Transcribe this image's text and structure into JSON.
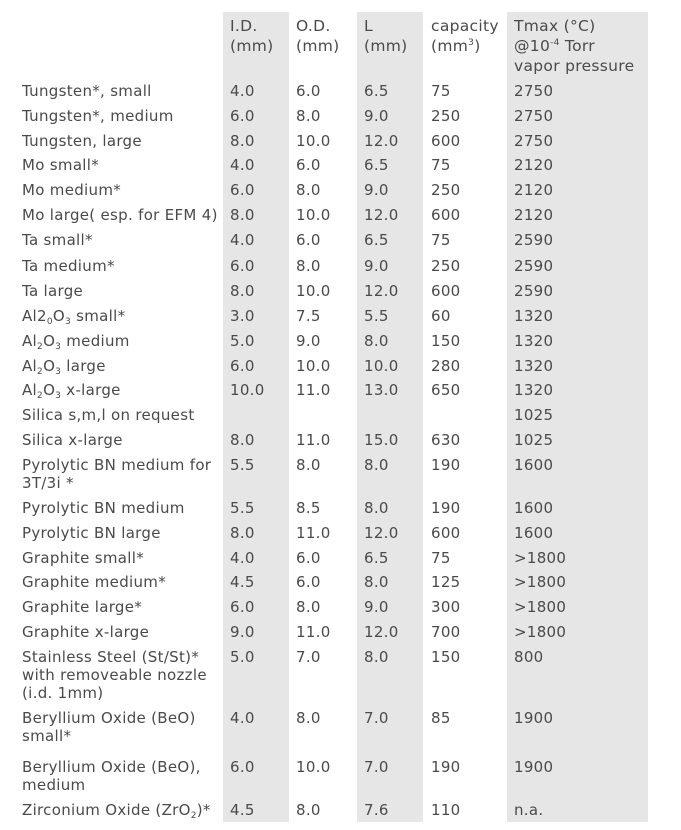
{
  "headers": {
    "id": [
      "I.D.",
      "(mm)"
    ],
    "od": [
      "O.D.",
      "(mm)"
    ],
    "l": [
      "L",
      "(mm)"
    ],
    "capacity": [
      "capacity",
      "(mm",
      "3",
      ")"
    ],
    "tmax": [
      "Tmax (°C)",
      "@10",
      "-4",
      " Torr",
      "vapor pressure"
    ]
  },
  "rows": [
    {
      "name": [
        "Tungsten*, small"
      ],
      "id": "4.0",
      "od": "6.0",
      "l": "6.5",
      "cap": "75",
      "tmax": "2750"
    },
    {
      "name": [
        "Tungsten*, medium"
      ],
      "id": "6.0",
      "od": "8.0",
      "l": "9.0",
      "cap": "250",
      "tmax": "2750"
    },
    {
      "name": [
        "Tungsten, large"
      ],
      "id": "8.0",
      "od": "10.0",
      "l": "12.0",
      "cap": "600",
      "tmax": "2750"
    },
    {
      "name": [
        "Mo small*"
      ],
      "id": "4.0",
      "od": "6.0",
      "l": "6.5",
      "cap": "75",
      "tmax": "2120"
    },
    {
      "name": [
        "Mo medium*"
      ],
      "id": "6.0",
      "od": "8.0",
      "l": "9.0",
      "cap": "250",
      "tmax": "2120"
    },
    {
      "name": [
        "Mo large( esp. for EFM 4)"
      ],
      "id": "8.0",
      "od": "10.0",
      "l": "12.0",
      "cap": "600",
      "tmax": "2120"
    },
    {
      "name": [
        "Ta small*"
      ],
      "id": "4.0",
      "od": "6.0",
      "l": "6.5",
      "cap": "75",
      "tmax": "2590"
    },
    {
      "name": [
        "Ta medium*"
      ],
      "id": "6.0",
      "od": "8.0",
      "l": "9.0",
      "cap": "250",
      "tmax": "2590"
    },
    {
      "name": [
        "Ta large"
      ],
      "id": "8.0",
      "od": "10.0",
      "l": "12.0",
      "cap": "600",
      "tmax": "2590"
    },
    {
      "name": [
        "Al2",
        "0",
        "O",
        "3",
        " small*"
      ],
      "id": "3.0",
      "od": "7.5",
      "l": "5.5",
      "cap": "60",
      "tmax": "1320"
    },
    {
      "name": [
        "Al",
        "2",
        "O",
        "3",
        " medium"
      ],
      "id": "5.0",
      "od": "9.0",
      "l": "8.0",
      "cap": "150",
      "tmax": "1320"
    },
    {
      "name": [
        "Al",
        "2",
        "O",
        "3",
        " large"
      ],
      "id": "6.0",
      "od": "10.0",
      "l": "10.0",
      "cap": "280",
      "tmax": "1320"
    },
    {
      "name": [
        "Al",
        "2",
        "O",
        "3",
        " x-large"
      ],
      "id": "10.0",
      "od": "11.0",
      "l": "13.0",
      "cap": "650",
      "tmax": "1320"
    },
    {
      "name": [
        "Silica s,m,l on request"
      ],
      "id": "",
      "od": "",
      "l": "",
      "cap": "",
      "tmax": "1025"
    },
    {
      "name": [
        "Silica x-large"
      ],
      "id": "8.0",
      "od": "11.0",
      "l": "15.0",
      "cap": "630",
      "tmax": "1025"
    },
    {
      "name": [
        "Pyrolytic BN medium for",
        "3T/3i *"
      ],
      "id": "5.5",
      "od": "8.0",
      "l": "8.0",
      "cap": "190",
      "tmax": "1600"
    },
    {
      "name": [
        "Pyrolytic BN medium"
      ],
      "id": "5.5",
      "od": "8.5",
      "l": "8.0",
      "cap": "190",
      "tmax": "1600"
    },
    {
      "name": [
        "Pyrolytic BN large"
      ],
      "id": "8.0",
      "od": "11.0",
      "l": "12.0",
      "cap": "600",
      "tmax": "1600"
    },
    {
      "name": [
        "Graphite small*"
      ],
      "id": "4.0",
      "od": "6.0",
      "l": "6.5",
      "cap": "75",
      "tmax": ">1800"
    },
    {
      "name": [
        "Graphite medium*"
      ],
      "id": "4.5",
      "od": "6.0",
      "l": "8.0",
      "cap": "125",
      "tmax": ">1800"
    },
    {
      "name": [
        "Graphite large*"
      ],
      "id": "6.0",
      "od": "8.0",
      "l": "9.0",
      "cap": "300",
      "tmax": ">1800"
    },
    {
      "name": [
        "Graphite x-large"
      ],
      "id": "9.0",
      "od": "11.0",
      "l": "12.0",
      "cap": "700",
      "tmax": ">1800"
    },
    {
      "name": [
        "Stainless Steel (St/St)*",
        "with removeable nozzle",
        "(i.d. 1mm)"
      ],
      "id": "5.0",
      "od": "7.0",
      "l": "8.0",
      "cap": "150",
      "tmax": "800"
    },
    {
      "name": [
        "Beryllium Oxide (BeO)",
        "small*"
      ],
      "id": "4.0",
      "od": "8.0",
      "l": "7.0",
      "cap": "85",
      "tmax": "1900"
    },
    {
      "name": [
        "Beryllium Oxide (BeO),",
        "medium"
      ],
      "id": "6.0",
      "od": "10.0",
      "l": "7.0",
      "cap": "190",
      "tmax": "1900"
    },
    {
      "name": [
        "Zirconium Oxide (ZrO",
        "2",
        ")*"
      ],
      "id": "4.5",
      "od": "8.0",
      "l": "7.6",
      "cap": "110",
      "tmax": "n.a."
    }
  ]
}
